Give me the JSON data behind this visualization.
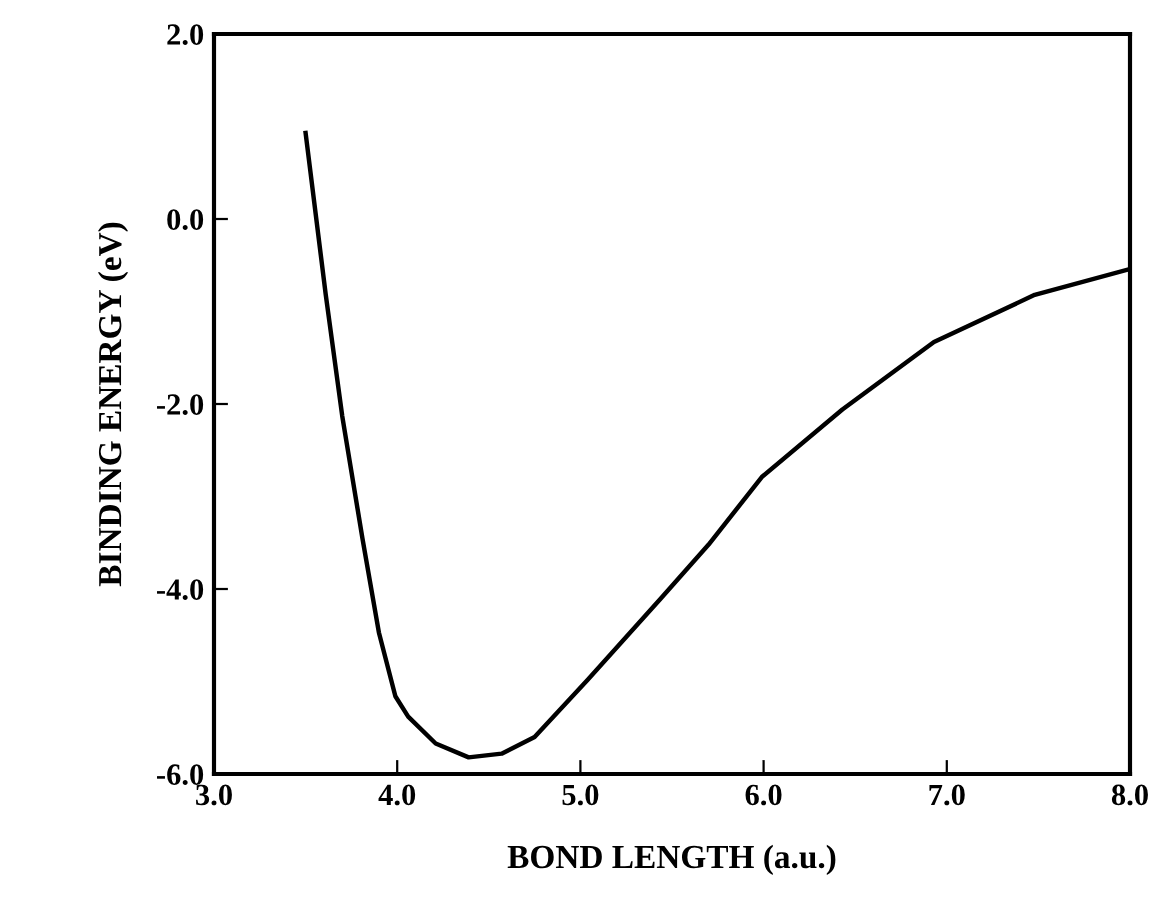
{
  "chart_data": {
    "type": "line",
    "xlabel": "BOND LENGTH (a.u.)",
    "ylabel": "BINDING ENERGY (eV)",
    "xlim": [
      3.0,
      8.0
    ],
    "ylim": [
      -6.0,
      2.0
    ],
    "xticks": [
      {
        "value": 3,
        "label": "3.0"
      },
      {
        "value": 4,
        "label": "4.0"
      },
      {
        "value": 5,
        "label": "5.0"
      },
      {
        "value": 6,
        "label": "6.0"
      },
      {
        "value": 7,
        "label": "7.0"
      },
      {
        "value": 8,
        "label": "8.0"
      }
    ],
    "yticks": [
      {
        "value": -6,
        "label": "-6.0"
      },
      {
        "value": -4,
        "label": "-4.0"
      },
      {
        "value": -2,
        "label": "-2.0"
      },
      {
        "value": 0,
        "label": "0.0"
      },
      {
        "value": 2,
        "label": "2.0"
      }
    ],
    "grid": false,
    "line_style": "solid",
    "series": [
      {
        "color": "#000000",
        "x": [
          3.5,
          3.61,
          3.7,
          3.81,
          3.9,
          3.99,
          4.06,
          4.21,
          4.39,
          4.57,
          4.75,
          5.04,
          5.44,
          5.7,
          5.99,
          6.43,
          6.93,
          7.48,
          8.0
        ],
        "values": [
          0.93,
          -0.82,
          -2.13,
          -3.45,
          -4.47,
          -5.16,
          -5.38,
          -5.67,
          -5.82,
          -5.78,
          -5.6,
          -4.98,
          -4.1,
          -3.52,
          -2.79,
          -2.06,
          -1.33,
          -0.82,
          -0.54
        ]
      }
    ]
  }
}
